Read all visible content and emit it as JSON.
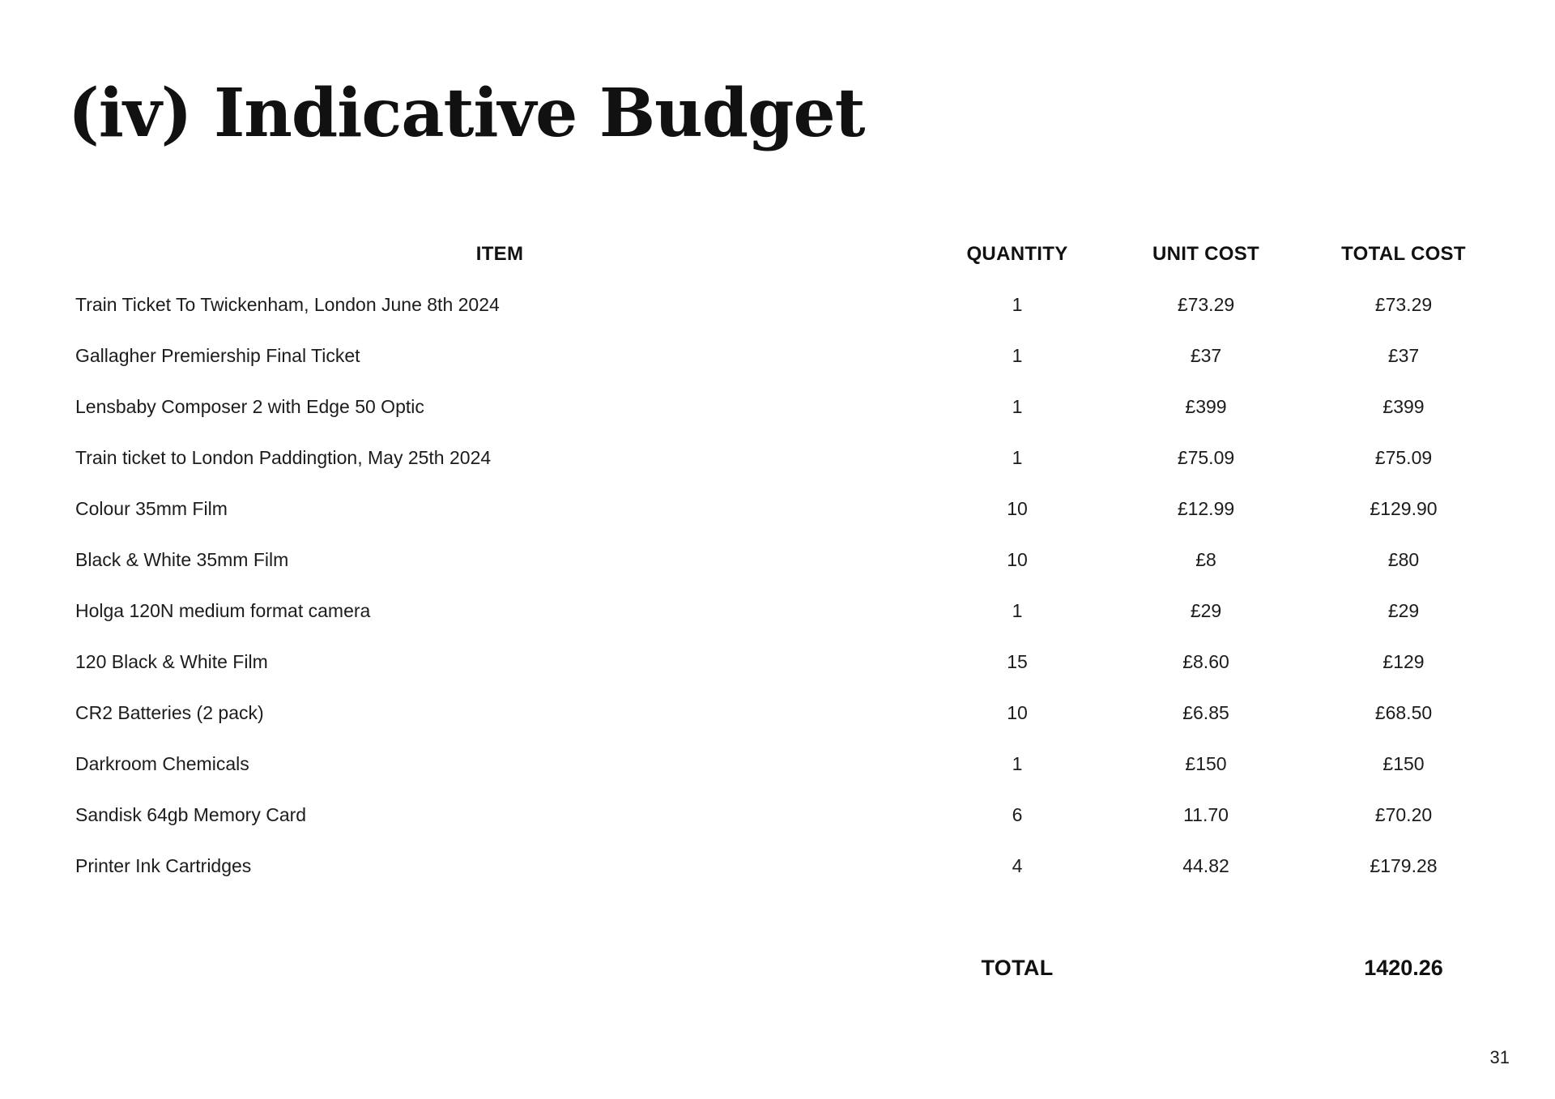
{
  "page": {
    "title": "(iv) Indicative Budget",
    "page_number": "31"
  },
  "table": {
    "headers": [
      "ITEM",
      "QUANTITY",
      "UNIT COST",
      "TOTAL COST"
    ],
    "rows": [
      {
        "item": "Train Ticket To Twickenham, London June 8th 2024",
        "quantity": "1",
        "unit_cost": "£73.29",
        "total_cost": "£73.29"
      },
      {
        "item": "Gallagher Premiership Final Ticket",
        "quantity": "1",
        "unit_cost": "£37",
        "total_cost": "£37"
      },
      {
        "item": "Lensbaby Composer 2 with Edge 50 Optic",
        "quantity": "1",
        "unit_cost": "£399",
        "total_cost": "£399"
      },
      {
        "item": "Train ticket to London Paddingtion, May 25th 2024",
        "quantity": "1",
        "unit_cost": "£75.09",
        "total_cost": "£75.09"
      },
      {
        "item": "Colour 35mm Film",
        "quantity": "10",
        "unit_cost": "£12.99",
        "total_cost": "£129.90"
      },
      {
        "item": "Black & White 35mm Film",
        "quantity": "10",
        "unit_cost": "£8",
        "total_cost": "£80"
      },
      {
        "item": "Holga 120N medium format camera",
        "quantity": "1",
        "unit_cost": "£29",
        "total_cost": "£29"
      },
      {
        "item": "120 Black & White Film",
        "quantity": "15",
        "unit_cost": "£8.60",
        "total_cost": "£129"
      },
      {
        "item": "CR2 Batteries (2 pack)",
        "quantity": "10",
        "unit_cost": "£6.85",
        "total_cost": "£68.50"
      },
      {
        "item": "Darkroom Chemicals",
        "quantity": "1",
        "unit_cost": "£150",
        "total_cost": "£150"
      },
      {
        "item": "Sandisk 64gb Memory Card",
        "quantity": "6",
        "unit_cost": "11.70",
        "total_cost": "£70.20"
      },
      {
        "item": "Printer Ink Cartridges",
        "quantity": "4",
        "unit_cost": "44.82",
        "total_cost": "£179.28"
      }
    ],
    "total_label": "TOTAL",
    "total_value": "1420.26"
  }
}
